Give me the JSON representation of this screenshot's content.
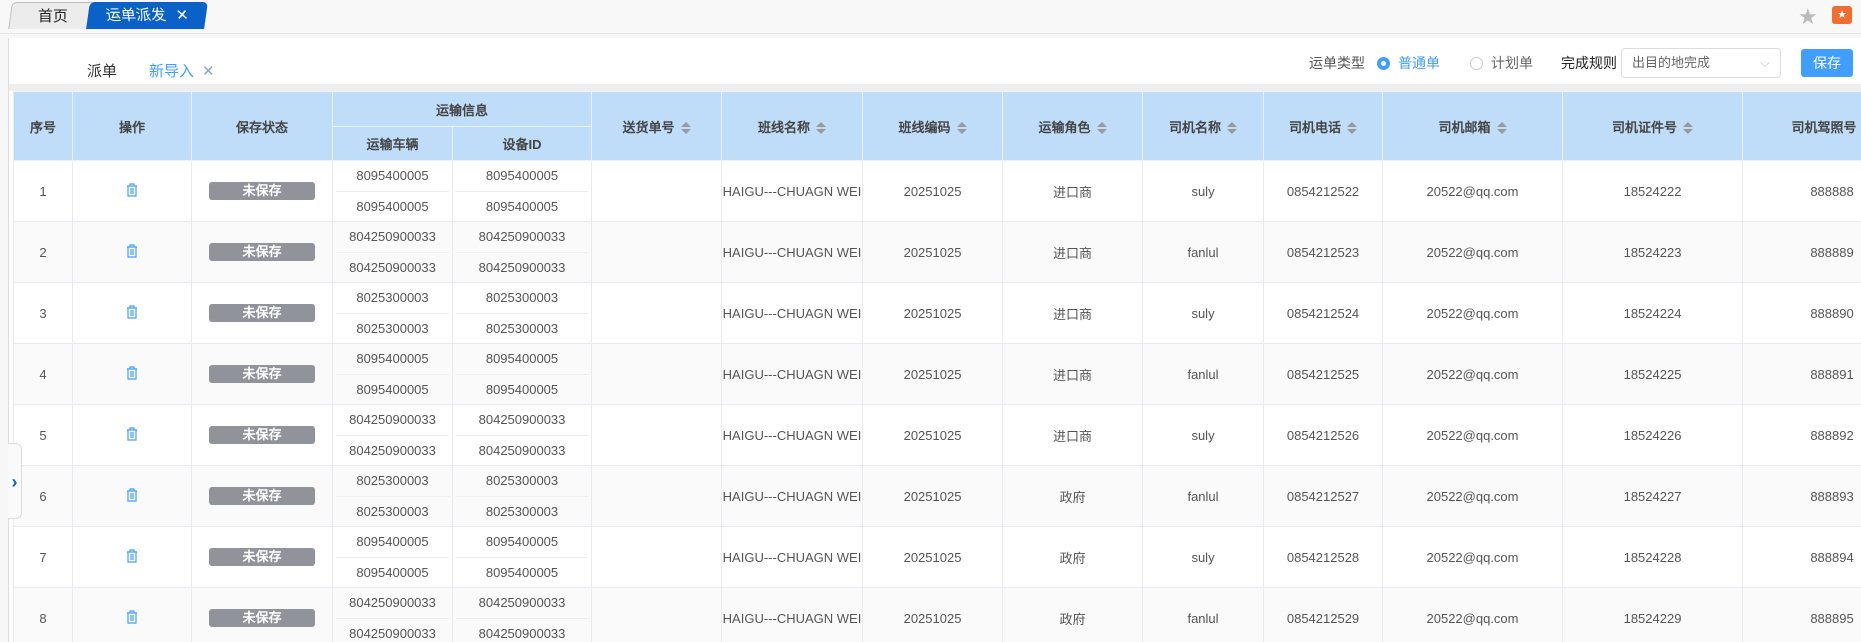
{
  "top_tabs": [
    {
      "label": "首页"
    },
    {
      "label": "运单派发",
      "close": "✕"
    }
  ],
  "sub_tabs": [
    {
      "label": "派单"
    },
    {
      "label": "新导入",
      "close": "✕"
    }
  ],
  "toolbar": {
    "type_label": "运单类型",
    "type_options": [
      "普通单",
      "计划单"
    ],
    "type_selected": "普通单",
    "rule_label": "完成规则",
    "rule_value": "出目的地完成",
    "save_label": "保存"
  },
  "colors": {
    "accent": "#409eff",
    "header_bg": "#bfddf8",
    "badge": "#909399",
    "tab_active": "#0a62c8"
  },
  "table": {
    "headers": {
      "index": "序号",
      "action": "操作",
      "status": "保存状态",
      "transport_group": "运输信息",
      "vehicle": "运输车辆",
      "device": "设备ID",
      "delivery_no": "送货单号",
      "line_name": "班线名称",
      "line_code": "班线编码",
      "role": "运输角色",
      "driver_name": "司机名称",
      "driver_phone": "司机电话",
      "driver_email": "司机邮箱",
      "driver_id": "司机证件号",
      "driver_license": "司机驾照号"
    },
    "rows": [
      {
        "index": "1",
        "status": "未保存",
        "vehicles": [
          "8095400005",
          "8095400005"
        ],
        "devices": [
          "8095400005",
          "8095400005"
        ],
        "delivery_no": "",
        "line_name": "HAIGU---CHUAGN WEI",
        "line_code": "20251025",
        "role": "进口商",
        "driver_name": "suly",
        "driver_phone": "0854212522",
        "driver_email": "20522@qq.com",
        "driver_id": "18524222",
        "driver_license": "888888"
      },
      {
        "index": "2",
        "status": "未保存",
        "vehicles": [
          "804250900033",
          "804250900033"
        ],
        "devices": [
          "804250900033",
          "804250900033"
        ],
        "delivery_no": "",
        "line_name": "HAIGU---CHUAGN WEI",
        "line_code": "20251025",
        "role": "进口商",
        "driver_name": "fanlul",
        "driver_phone": "0854212523",
        "driver_email": "20522@qq.com",
        "driver_id": "18524223",
        "driver_license": "888889"
      },
      {
        "index": "3",
        "status": "未保存",
        "vehicles": [
          "8025300003",
          "8025300003"
        ],
        "devices": [
          "8025300003",
          "8025300003"
        ],
        "delivery_no": "",
        "line_name": "HAIGU---CHUAGN WEI",
        "line_code": "20251025",
        "role": "进口商",
        "driver_name": "suly",
        "driver_phone": "0854212524",
        "driver_email": "20522@qq.com",
        "driver_id": "18524224",
        "driver_license": "888890"
      },
      {
        "index": "4",
        "status": "未保存",
        "vehicles": [
          "8095400005",
          "8095400005"
        ],
        "devices": [
          "8095400005",
          "8095400005"
        ],
        "delivery_no": "",
        "line_name": "HAIGU---CHUAGN WEI",
        "line_code": "20251025",
        "role": "进口商",
        "driver_name": "fanlul",
        "driver_phone": "0854212525",
        "driver_email": "20522@qq.com",
        "driver_id": "18524225",
        "driver_license": "888891"
      },
      {
        "index": "5",
        "status": "未保存",
        "vehicles": [
          "804250900033",
          "804250900033"
        ],
        "devices": [
          "804250900033",
          "804250900033"
        ],
        "delivery_no": "",
        "line_name": "HAIGU---CHUAGN WEI",
        "line_code": "20251025",
        "role": "进口商",
        "driver_name": "suly",
        "driver_phone": "0854212526",
        "driver_email": "20522@qq.com",
        "driver_id": "18524226",
        "driver_license": "888892"
      },
      {
        "index": "6",
        "status": "未保存",
        "vehicles": [
          "8025300003",
          "8025300003"
        ],
        "devices": [
          "8025300003",
          "8025300003"
        ],
        "delivery_no": "",
        "line_name": "HAIGU---CHUAGN WEI",
        "line_code": "20251025",
        "role": "政府",
        "driver_name": "fanlul",
        "driver_phone": "0854212527",
        "driver_email": "20522@qq.com",
        "driver_id": "18524227",
        "driver_license": "888893"
      },
      {
        "index": "7",
        "status": "未保存",
        "vehicles": [
          "8095400005",
          "8095400005"
        ],
        "devices": [
          "8095400005",
          "8095400005"
        ],
        "delivery_no": "",
        "line_name": "HAIGU---CHUAGN WEI",
        "line_code": "20251025",
        "role": "政府",
        "driver_name": "suly",
        "driver_phone": "0854212528",
        "driver_email": "20522@qq.com",
        "driver_id": "18524228",
        "driver_license": "888894"
      },
      {
        "index": "8",
        "status": "未保存",
        "vehicles": [
          "804250900033",
          "804250900033"
        ],
        "devices": [
          "804250900033",
          "804250900033"
        ],
        "delivery_no": "",
        "line_name": "HAIGU---CHUAGN WEI",
        "line_code": "20251025",
        "role": "政府",
        "driver_name": "fanlul",
        "driver_phone": "0854212529",
        "driver_email": "20522@qq.com",
        "driver_id": "18524229",
        "driver_license": "888895"
      }
    ]
  }
}
